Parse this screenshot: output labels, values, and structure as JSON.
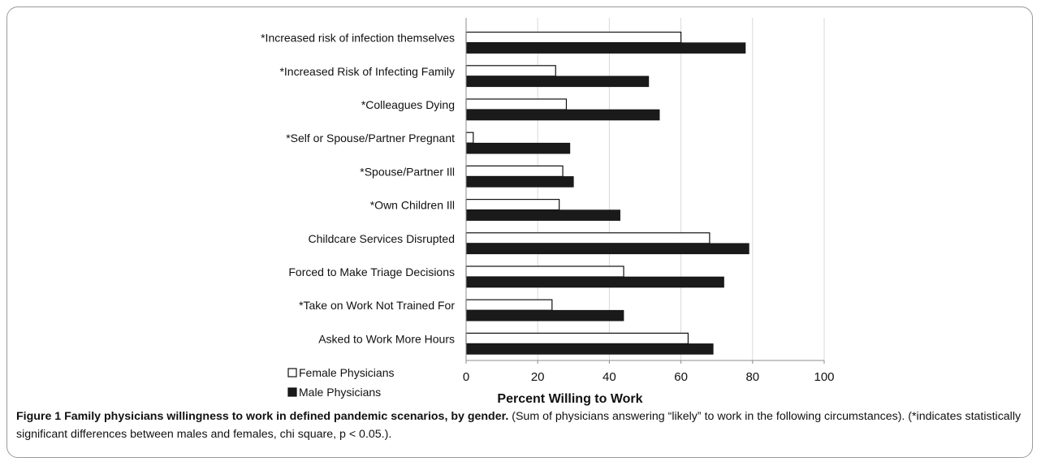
{
  "chart_data": {
    "type": "bar",
    "orientation": "horizontal",
    "categories": [
      "*Increased risk of infection themselves",
      "*Increased Risk of Infecting Family",
      "*Colleagues Dying",
      "*Self or Spouse/Partner Pregnant",
      "*Spouse/Partner Ill",
      "*Own Children Ill",
      "Childcare Services Disrupted",
      "Forced to Make Triage Decisions",
      "*Take on Work Not Trained For",
      "Asked to Work More Hours"
    ],
    "series": [
      {
        "name": "Female Physicians",
        "color": "#ffffff",
        "values": [
          60,
          25,
          28,
          2,
          27,
          26,
          68,
          44,
          24,
          62
        ]
      },
      {
        "name": "Male Physicians",
        "color": "#1a1a1a",
        "values": [
          78,
          51,
          54,
          29,
          30,
          43,
          79,
          72,
          44,
          69
        ]
      }
    ],
    "xlabel": "Percent Willing to Work",
    "xlim": [
      0,
      100
    ],
    "xticks": [
      0,
      20,
      40,
      60,
      80,
      100
    ],
    "grid": true,
    "legend_position": "bottom-left"
  },
  "caption": {
    "title": "Figure 1 Family physicians willingness to work in defined pandemic scenarios, by gender.",
    "text": " (Sum of physicians answering “likely” to work in the following circumstances). (*indicates statistically significant differences between males and females, chi square, p < 0.05.)."
  }
}
